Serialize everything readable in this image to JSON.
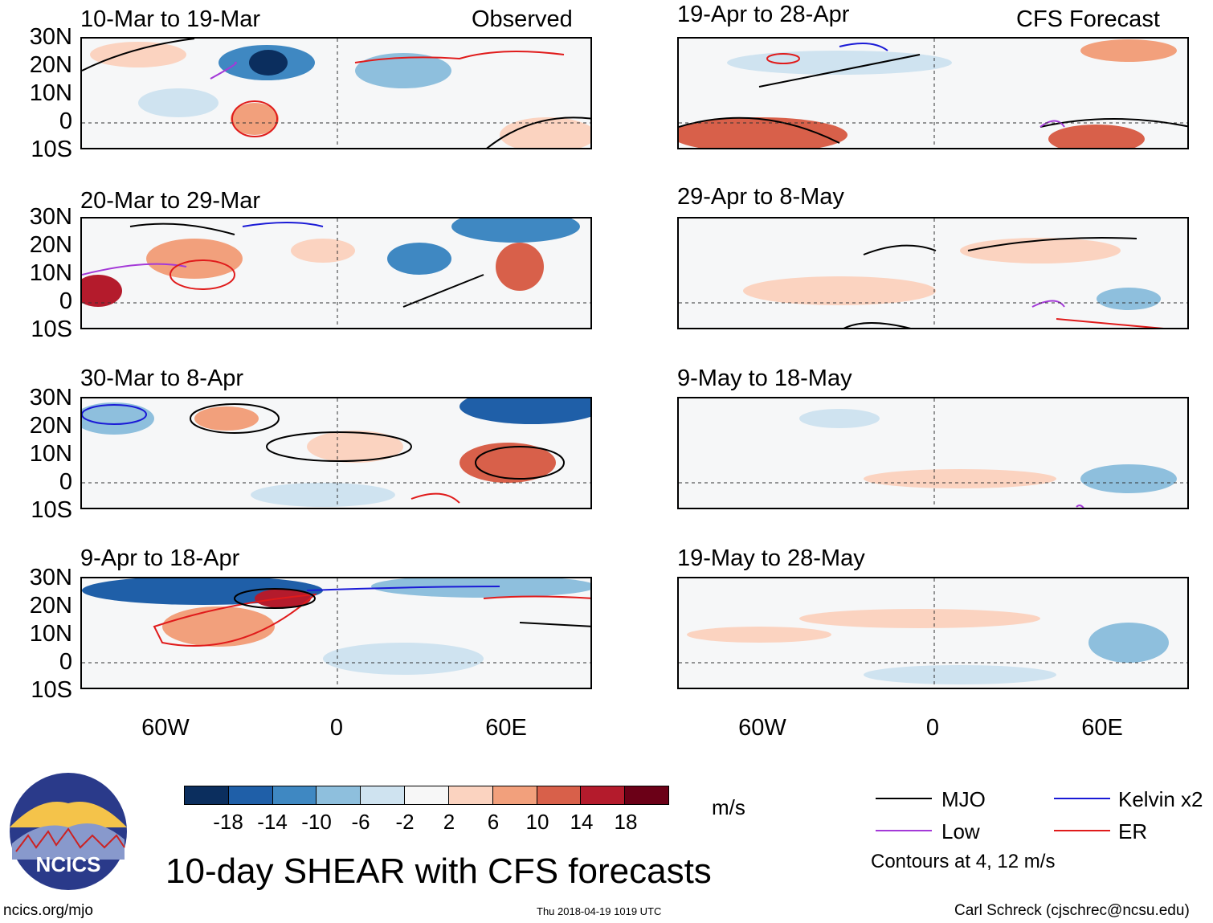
{
  "panel_header_left": "Observed",
  "panel_header_right": "CFS Forecast",
  "panels_left": [
    {
      "title": "10-Mar to 19-Mar"
    },
    {
      "title": "20-Mar to 29-Mar"
    },
    {
      "title": "30-Mar to 8-Apr"
    },
    {
      "title": "9-Apr to 18-Apr"
    }
  ],
  "panels_right": [
    {
      "title": "19-Apr to 28-Apr"
    },
    {
      "title": "29-Apr to 8-May"
    },
    {
      "title": "9-May to 18-May"
    },
    {
      "title": "19-May to 28-May"
    }
  ],
  "lat_labels": [
    "30N",
    "20N",
    "10N",
    "0",
    "10S"
  ],
  "lon_labels": [
    "60W",
    "0",
    "60E"
  ],
  "colorbar": {
    "unit": "m/s",
    "ticks": [
      "-18",
      "-14",
      "-10",
      "-6",
      "-2",
      "2",
      "6",
      "10",
      "14",
      "18"
    ],
    "colors": [
      "#0b2e5e",
      "#1f5fa8",
      "#3f88c2",
      "#8ebfdd",
      "#cfe3f0",
      "#f7f7f7",
      "#fbd3c0",
      "#f2a07c",
      "#d8604a",
      "#b41b2c",
      "#6b0017"
    ]
  },
  "legend": {
    "mjo": "MJO",
    "kelvin": "Kelvin x2",
    "low": "Low",
    "er": "ER",
    "note": "Contours at 4, 12 m/s",
    "colors": {
      "mjo": "#000000",
      "kelvin": "#1a1ad6",
      "low": "#a43ad8",
      "er": "#e01b1b"
    }
  },
  "main_title": "10-day SHEAR with CFS forecasts",
  "logo_text": "NCICS",
  "footer": {
    "left": "ncics.org/mjo",
    "center": "Thu 2018-04-19 1019 UTC",
    "right": "Carl Schreck (cjschrec@ncsu.edu)"
  }
}
